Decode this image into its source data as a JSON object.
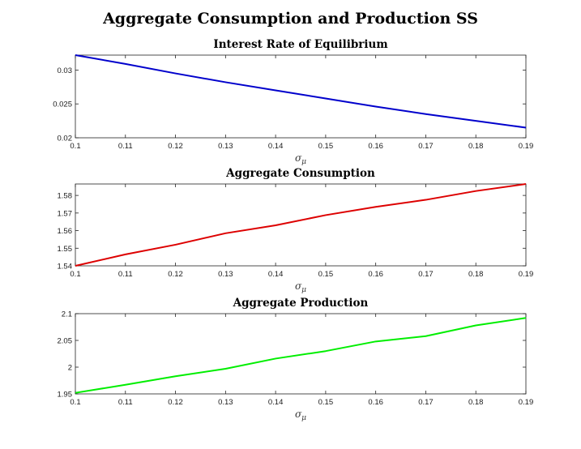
{
  "suptitle": "Aggregate Consumption and Production SS",
  "chart_data": [
    {
      "type": "line",
      "title": "Interest Rate of Equilibrium",
      "xlabel": "σ",
      "xlabel_sub": "μ",
      "ylabel": "",
      "x": [
        0.1,
        0.11,
        0.12,
        0.13,
        0.14,
        0.15,
        0.16,
        0.17,
        0.18,
        0.19
      ],
      "series": [
        {
          "color": "#0000cc",
          "values": [
            0.0322,
            0.0309,
            0.0295,
            0.0282,
            0.027,
            0.0258,
            0.0246,
            0.0235,
            0.0225,
            0.0215
          ]
        }
      ],
      "xlim": [
        0.1,
        0.19
      ],
      "ylim": [
        0.02,
        0.0322
      ],
      "xticks": [
        0.1,
        0.11,
        0.12,
        0.13,
        0.14,
        0.15,
        0.16,
        0.17,
        0.18,
        0.19
      ],
      "xtick_labels": [
        "0.1",
        "0.11",
        "0.12",
        "0.13",
        "0.14",
        "0.15",
        "0.16",
        "0.17",
        "0.18",
        "0.19"
      ],
      "yticks": [
        0.02,
        0.025,
        0.03
      ],
      "ytick_labels": [
        "0.02",
        "0.025",
        "0.03"
      ],
      "grid": false
    },
    {
      "type": "line",
      "title": "Aggregate Consumption",
      "xlabel": "σ",
      "xlabel_sub": "μ",
      "ylabel": "",
      "x": [
        0.1,
        0.11,
        0.12,
        0.13,
        0.14,
        0.15,
        0.16,
        0.17,
        0.18,
        0.19
      ],
      "series": [
        {
          "color": "#dd0000",
          "values": [
            1.54,
            1.5465,
            1.552,
            1.5585,
            1.563,
            1.5688,
            1.5735,
            1.5775,
            1.5825,
            1.5865
          ]
        }
      ],
      "xlim": [
        0.1,
        0.19
      ],
      "ylim": [
        1.54,
        1.5865
      ],
      "xticks": [
        0.1,
        0.11,
        0.12,
        0.13,
        0.14,
        0.15,
        0.16,
        0.17,
        0.18,
        0.19
      ],
      "xtick_labels": [
        "0.1",
        "0.11",
        "0.12",
        "0.13",
        "0.14",
        "0.15",
        "0.16",
        "0.17",
        "0.18",
        "0.19"
      ],
      "yticks": [
        1.54,
        1.55,
        1.56,
        1.57,
        1.58
      ],
      "ytick_labels": [
        "1.54",
        "1.55",
        "1.56",
        "1.57",
        "1.58"
      ],
      "grid": false
    },
    {
      "type": "line",
      "title": "Aggregate Production",
      "xlabel": "σ",
      "xlabel_sub": "μ",
      "ylabel": "",
      "x": [
        0.1,
        0.11,
        0.12,
        0.13,
        0.14,
        0.15,
        0.16,
        0.17,
        0.18,
        0.19
      ],
      "series": [
        {
          "color": "#00ee00",
          "values": [
            1.952,
            1.967,
            1.983,
            1.997,
            2.016,
            2.03,
            2.048,
            2.058,
            2.078,
            2.092
          ]
        }
      ],
      "xlim": [
        0.1,
        0.19
      ],
      "ylim": [
        1.95,
        2.1
      ],
      "xticks": [
        0.1,
        0.11,
        0.12,
        0.13,
        0.14,
        0.15,
        0.16,
        0.17,
        0.18,
        0.19
      ],
      "xtick_labels": [
        "0.1",
        "0.11",
        "0.12",
        "0.13",
        "0.14",
        "0.15",
        "0.16",
        "0.17",
        "0.18",
        "0.19"
      ],
      "yticks": [
        1.95,
        2.0,
        2.05,
        2.1
      ],
      "ytick_labels": [
        "1.95",
        "2",
        "2.05",
        "2.1"
      ],
      "grid": false
    }
  ]
}
